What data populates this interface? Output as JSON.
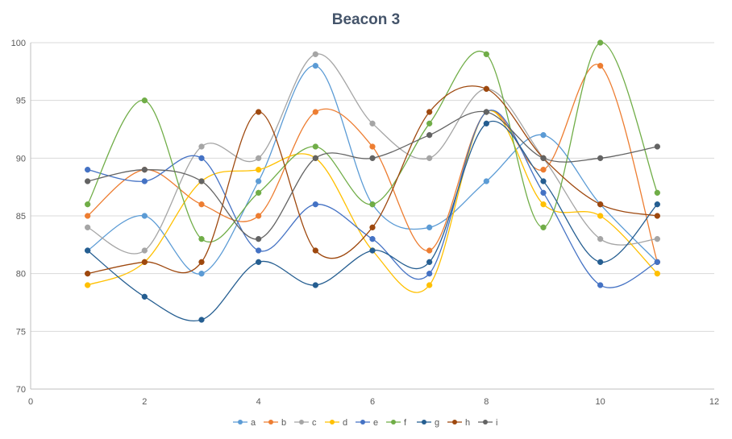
{
  "chart_data": {
    "type": "scatter",
    "style": "smoothed lines with markers",
    "title": "Beacon 3",
    "xlabel": "",
    "ylabel": "",
    "xlim": [
      0,
      12
    ],
    "ylim": [
      70,
      100
    ],
    "x_ticks": [
      0,
      2,
      4,
      6,
      8,
      10,
      12
    ],
    "y_ticks": [
      70,
      75,
      80,
      85,
      90,
      95,
      100
    ],
    "grid": "horizontal major gridlines on",
    "legend_position": "bottom",
    "x": [
      1,
      2,
      3,
      4,
      5,
      6,
      7,
      8,
      9,
      10,
      11
    ],
    "series": [
      {
        "name": "a",
        "color": "#5b9bd5",
        "values": [
          82,
          85,
          80,
          88,
          98,
          86,
          84,
          88,
          92,
          86,
          81
        ]
      },
      {
        "name": "b",
        "color": "#ed7d31",
        "values": [
          85,
          89,
          86,
          85,
          94,
          91,
          82,
          94,
          89,
          98,
          81
        ]
      },
      {
        "name": "c",
        "color": "#a5a5a5",
        "values": [
          84,
          82,
          91,
          90,
          99,
          93,
          90,
          96,
          90,
          83,
          83
        ]
      },
      {
        "name": "d",
        "color": "#ffc000",
        "values": [
          79,
          81,
          88,
          89,
          90,
          82,
          79,
          94,
          86,
          85,
          80
        ]
      },
      {
        "name": "e",
        "color": "#4472c4",
        "values": [
          89,
          88,
          90,
          82,
          86,
          83,
          80,
          94,
          87,
          79,
          81
        ]
      },
      {
        "name": "f",
        "color": "#70ad47",
        "values": [
          86,
          95,
          83,
          87,
          91,
          86,
          93,
          99,
          84,
          100,
          87
        ]
      },
      {
        "name": "g",
        "color": "#255e91",
        "values": [
          82,
          78,
          76,
          81,
          79,
          82,
          81,
          93,
          88,
          81,
          86
        ]
      },
      {
        "name": "h",
        "color": "#9e480e",
        "values": [
          80,
          81,
          81,
          94,
          82,
          84,
          94,
          96,
          90,
          86,
          85
        ]
      },
      {
        "name": "i",
        "color": "#636363",
        "values": [
          88,
          89,
          88,
          83,
          90,
          90,
          92,
          94,
          90,
          90,
          91
        ]
      }
    ]
  }
}
